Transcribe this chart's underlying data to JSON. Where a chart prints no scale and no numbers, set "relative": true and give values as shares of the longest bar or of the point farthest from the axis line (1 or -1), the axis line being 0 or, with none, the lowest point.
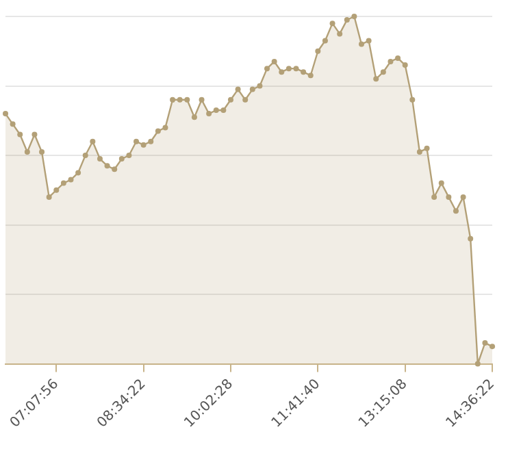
{
  "chart_data": {
    "type": "area",
    "relative": true,
    "grid": "y",
    "marker": "circle",
    "legend": false,
    "categories": [
      null,
      null,
      null,
      null,
      null,
      null,
      null,
      "07:07:56",
      null,
      null,
      null,
      null,
      null,
      null,
      null,
      null,
      null,
      null,
      null,
      "08:34:22",
      null,
      null,
      null,
      null,
      null,
      null,
      null,
      null,
      null,
      null,
      null,
      "10:02:28",
      null,
      null,
      null,
      null,
      null,
      null,
      null,
      null,
      null,
      null,
      null,
      "11:41:40",
      null,
      null,
      null,
      null,
      null,
      null,
      null,
      null,
      null,
      null,
      null,
      "13:15:08",
      null,
      null,
      null,
      null,
      null,
      null,
      null,
      null,
      null,
      null,
      null,
      "14:36:22"
    ],
    "series": [
      {
        "color": "#b3a077",
        "values": [
          0.72,
          0.69,
          0.66,
          0.61,
          0.66,
          0.61,
          0.48,
          0.5,
          0.52,
          0.53,
          0.55,
          0.6,
          0.64,
          0.59,
          0.57,
          0.56,
          0.59,
          0.6,
          0.64,
          0.63,
          0.64,
          0.67,
          0.68,
          0.76,
          0.76,
          0.76,
          0.71,
          0.76,
          0.72,
          0.73,
          0.73,
          0.76,
          0.79,
          0.76,
          0.79,
          0.8,
          0.85,
          0.87,
          0.84,
          0.85,
          0.85,
          0.84,
          0.83,
          0.9,
          0.93,
          0.98,
          0.95,
          0.99,
          1,
          0.92,
          0.93,
          0.82,
          0.84,
          0.87,
          0.88,
          0.86,
          0.76,
          0.61,
          0.62,
          0.48,
          0.52,
          0.48,
          0.44,
          0.48,
          0.36,
          0,
          0.06,
          0.05
        ]
      }
    ]
  }
}
